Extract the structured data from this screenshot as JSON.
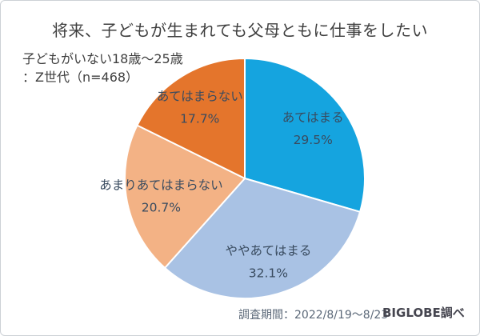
{
  "header": {
    "title": "将来、子どもが生まれても父母ともに仕事をしたい",
    "subtitle_line1": "子どもがいない18歳～25歳",
    "subtitle_line2": "：Z世代（n=468）"
  },
  "footer": {
    "survey_period": "調査期間：2022/8/19～8/23",
    "source": "BIGLOBE調べ"
  },
  "chart_data": {
    "type": "pie",
    "title": "将来、子どもが生まれても父母ともに仕事をしたい",
    "subtitle": "子どもがいない18歳～25歳：Z世代（n=468）",
    "start_angle_deg": 0,
    "direction": "clockwise",
    "label_color": "#394b5f",
    "slice_border_color": "#ffffff",
    "slices": [
      {
        "key": "atehamaru",
        "label": "あてはまる",
        "value": 29.5,
        "pct_label": "29.5%",
        "color": "#15a4df"
      },
      {
        "key": "yaya-atehamaru",
        "label": "ややあてはまる",
        "value": 32.1,
        "pct_label": "32.1%",
        "color": "#a9c2e4"
      },
      {
        "key": "amari-atehamaranai",
        "label": "あまりあてはまらない",
        "value": 20.7,
        "pct_label": "20.7%",
        "color": "#f3b285"
      },
      {
        "key": "atehamaranai",
        "label": "あてはまらない",
        "value": 17.7,
        "pct_label": "17.7%",
        "color": "#e4752c"
      }
    ]
  }
}
